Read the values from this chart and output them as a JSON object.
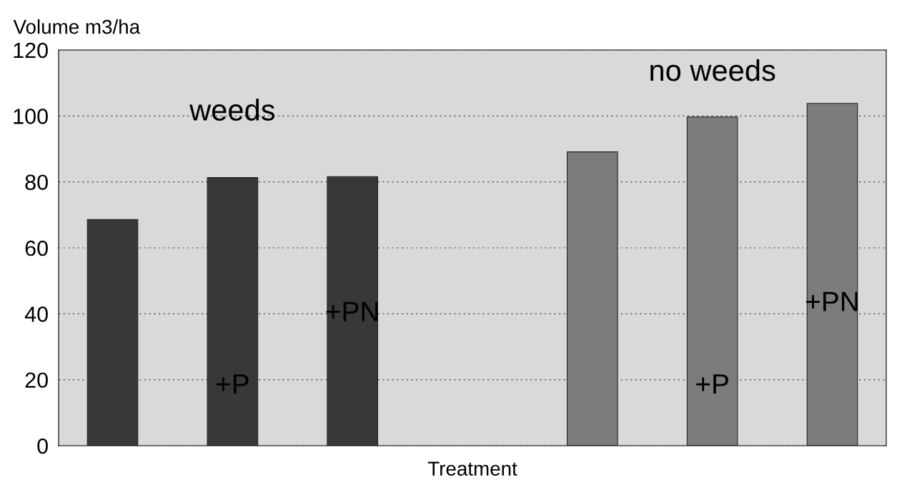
{
  "chart_data": {
    "type": "bar",
    "ylabel": "Volume m3/ha",
    "xlabel": "Treatment",
    "categories": [
      null,
      null,
      null,
      null,
      null,
      null,
      null
    ],
    "values": [
      68.6,
      81.3,
      81.6,
      null,
      89.1,
      99.7,
      103.8
    ],
    "colors": [
      "#383838",
      "#383838",
      "#383838",
      "#383838",
      "#7c7c7c",
      "#7c7c7c",
      "#7c7c7c"
    ],
    "ylim": [
      0,
      120
    ],
    "yticks": [
      0,
      20,
      40,
      60,
      80,
      100,
      120
    ],
    "grid": "y",
    "annotations": [
      "weeds",
      "+P",
      "+PN",
      "no weeds",
      "+P",
      "+PN"
    ]
  }
}
